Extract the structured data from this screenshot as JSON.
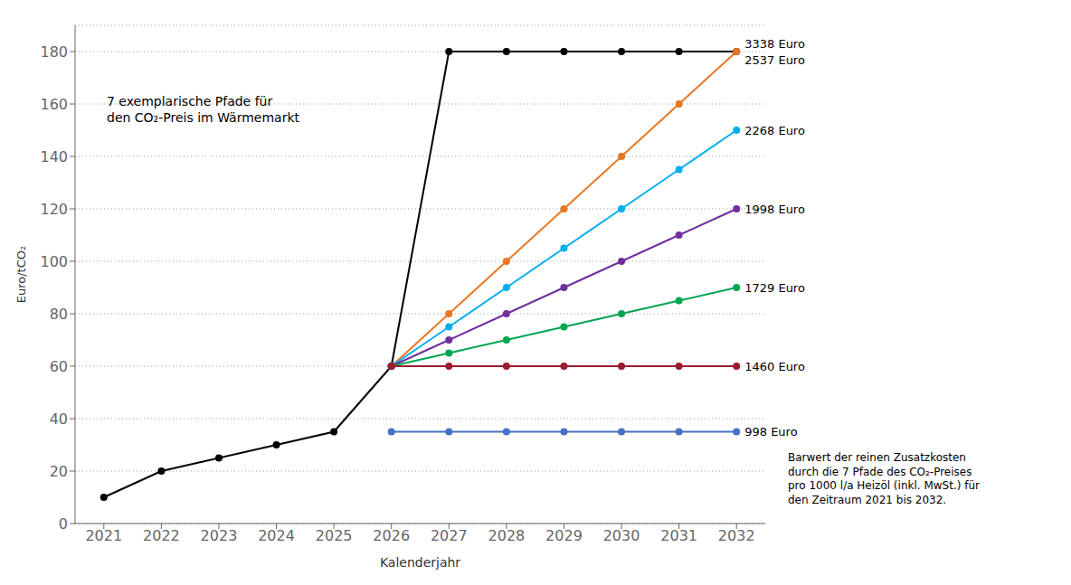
{
  "chart_data": {
    "type": "line",
    "x": [
      2021,
      2022,
      2023,
      2024,
      2025,
      2026,
      2027,
      2028,
      2029,
      2030,
      2031,
      2032
    ],
    "series": [
      {
        "name": "3338 Euro",
        "color": "#000000",
        "values": [
          10,
          20,
          25,
          30,
          35,
          60,
          180,
          180,
          180,
          180,
          180,
          180
        ]
      },
      {
        "name": "2537 Euro",
        "color": "#E87722",
        "values": [
          null,
          null,
          null,
          null,
          null,
          60,
          80,
          100,
          120,
          140,
          160,
          180
        ]
      },
      {
        "name": "2268 Euro",
        "color": "#00AEEF",
        "values": [
          null,
          null,
          null,
          null,
          null,
          60,
          75,
          90,
          105,
          120,
          135,
          150
        ]
      },
      {
        "name": "1998 Euro",
        "color": "#7030A0",
        "values": [
          null,
          null,
          null,
          null,
          null,
          60,
          70,
          80,
          90,
          100,
          110,
          120
        ]
      },
      {
        "name": "1729 Euro",
        "color": "#00A651",
        "values": [
          null,
          null,
          null,
          null,
          null,
          60,
          65,
          70,
          75,
          80,
          85,
          90
        ]
      },
      {
        "name": "1460 Euro",
        "color": "#9B1B30",
        "values": [
          null,
          null,
          null,
          null,
          null,
          60,
          60,
          60,
          60,
          60,
          60,
          60
        ]
      },
      {
        "name": "998 Euro",
        "color": "#4472C4",
        "values": [
          null,
          null,
          null,
          null,
          null,
          35,
          35,
          35,
          35,
          35,
          35,
          35
        ]
      }
    ],
    "xlabel": "Kalenderjahr",
    "ylabel": "Euro/tCO₂",
    "xlim": [
      2020.5,
      2032.5
    ],
    "ylim": [
      0,
      190
    ],
    "xticks": [
      2021,
      2022,
      2023,
      2024,
      2025,
      2026,
      2027,
      2028,
      2029,
      2030,
      2031,
      2032
    ],
    "yticks": [
      0,
      20,
      40,
      60,
      80,
      100,
      120,
      140,
      160,
      180
    ],
    "grid": "y",
    "marker": "circle",
    "annotations": [
      {
        "text": "7 exemplarische Pfade für\nden CO₂-Preis im Wärmemarkt"
      },
      {
        "text": "Barwert der reinen Zusatzkosten\ndurch die 7 Pfade des CO₂-Preises\npro 1000 l/a Heizöl (inkl. MwSt.) für\nden Zeitraum 2021 bis 2032."
      }
    ]
  }
}
